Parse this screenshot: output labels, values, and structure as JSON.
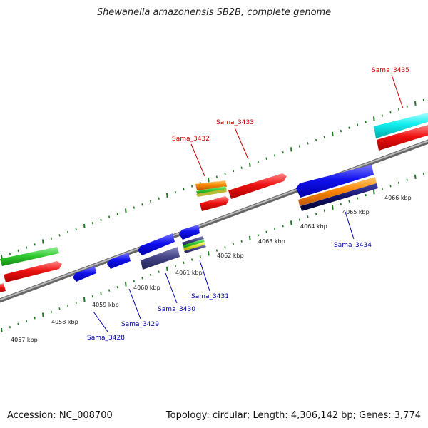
{
  "header": {
    "title": "Shewanella amazonensis SB2B, complete genome"
  },
  "footer": {
    "accession": "Accession: NC_008700",
    "topology": "Topology: circular; Length: 4,306,142 bp; Genes: 3,774"
  },
  "scale": {
    "labels": [
      "4057 kbp",
      "4058 kbp",
      "4059 kbp",
      "4060 kbp",
      "4061 kbp",
      "4062 kbp",
      "4063 kbp",
      "4064 kbp",
      "4065 kbp",
      "4066 kbp"
    ]
  },
  "genes": {
    "forward": [
      "Sama_3432",
      "Sama_3433",
      "Sama_3435"
    ],
    "reverse": [
      "Sama_3428",
      "Sama_3429",
      "Sama_3430",
      "Sama_3431",
      "Sama_3434"
    ]
  },
  "colors": {
    "red": "#ee1111",
    "green": "#33cc33",
    "blue": "#1111ee",
    "cyan": "#11eeee",
    "orange": "#ff8800",
    "navy": "#111166",
    "slate": "#444488",
    "backbone": "#888888",
    "tick": "#227722"
  }
}
